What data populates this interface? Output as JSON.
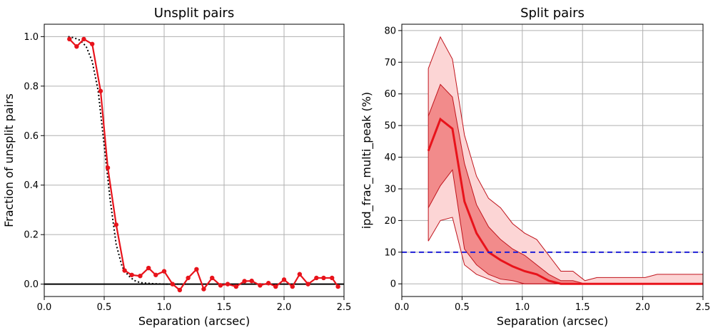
{
  "chart_data": [
    {
      "type": "line",
      "title": "Unsplit pairs",
      "xlabel": "Separation (arcsec)",
      "ylabel": "Fraction of unsplit pairs",
      "xlim": [
        0.0,
        2.5
      ],
      "ylim": [
        -0.05,
        1.05
      ],
      "x_ticks": [
        "0.0",
        "0.5",
        "1.0",
        "1.5",
        "2.0",
        "2.5"
      ],
      "y_ticks": [
        "0.0",
        "0.2",
        "0.4",
        "0.6",
        "0.8",
        "1.0"
      ],
      "grid": true,
      "colors": {
        "data": "#e8131b",
        "model": "#000000",
        "zero": "#000000",
        "grid": "#b0b0b0"
      },
      "series": [
        {
          "style": "solid-with-markers",
          "x": [
            0.21,
            0.27,
            0.33,
            0.4,
            0.47,
            0.53,
            0.6,
            0.67,
            0.73,
            0.8,
            0.87,
            0.93,
            1.0,
            1.07,
            1.13,
            1.2,
            1.27,
            1.33,
            1.4,
            1.47,
            1.53,
            1.6,
            1.67,
            1.73,
            1.8,
            1.87,
            1.93,
            2.0,
            2.07,
            2.13,
            2.2,
            2.27,
            2.33,
            2.4,
            2.45
          ],
          "y": [
            0.99,
            0.96,
            0.99,
            0.97,
            0.78,
            0.47,
            0.24,
            0.055,
            0.037,
            0.033,
            0.065,
            0.037,
            0.052,
            0.0,
            -0.024,
            0.025,
            0.06,
            -0.02,
            0.025,
            -0.005,
            0.0,
            -0.01,
            0.012,
            0.013,
            -0.005,
            0.004,
            -0.01,
            0.018,
            -0.01,
            0.04,
            0.0,
            0.025,
            0.025,
            0.025,
            -0.01
          ]
        },
        {
          "style": "dotted",
          "x": [
            0.2,
            0.25,
            0.3,
            0.35,
            0.4,
            0.45,
            0.5,
            0.55,
            0.6,
            0.65,
            0.7,
            0.75,
            0.8,
            0.9,
            1.0,
            1.1,
            1.2
          ],
          "y": [
            1.0,
            0.995,
            0.985,
            0.96,
            0.9,
            0.78,
            0.56,
            0.34,
            0.16,
            0.07,
            0.035,
            0.015,
            0.006,
            0.002,
            0.0,
            0.0,
            0.0
          ]
        },
        {
          "style": "solid-horizontal",
          "x": [
            0.0,
            2.5
          ],
          "y": [
            0.0,
            0.0
          ]
        }
      ]
    },
    {
      "type": "area",
      "title": "Split pairs",
      "xlabel": "Separation (arcsec)",
      "ylabel": "ipd_frac_multi_peak (%)",
      "xlim": [
        0.0,
        2.5
      ],
      "ylim": [
        -4,
        82
      ],
      "x_ticks": [
        "0.0",
        "0.5",
        "1.0",
        "1.5",
        "2.0",
        "2.5"
      ],
      "y_ticks": [
        "0",
        "10",
        "20",
        "30",
        "40",
        "50",
        "60",
        "70",
        "80"
      ],
      "grid": true,
      "colors": {
        "median": "#e8131b",
        "inner_band": "#f28b8b",
        "outer_band": "#fcd5d5",
        "band_edge": "#c0141c",
        "reference": "#1f1fd6",
        "grid": "#b0b0b0"
      },
      "x": [
        0.22,
        0.32,
        0.42,
        0.52,
        0.62,
        0.72,
        0.82,
        0.92,
        1.02,
        1.12,
        1.22,
        1.32,
        1.42,
        1.52,
        1.62,
        1.72,
        1.82,
        1.92,
        2.02,
        2.12,
        2.22,
        2.32,
        2.42,
        2.5
      ],
      "series": [
        {
          "name_hidden": true,
          "role": "p5",
          "values": [
            13.5,
            20,
            21,
            6,
            3,
            1.5,
            0,
            0,
            0,
            0,
            0,
            0,
            0,
            0,
            0,
            0,
            0,
            0,
            0,
            0,
            0,
            0,
            0,
            0
          ]
        },
        {
          "name_hidden": true,
          "role": "p25",
          "values": [
            24,
            31,
            36,
            11,
            6,
            3,
            1.5,
            1,
            0,
            0,
            0,
            0,
            0,
            0,
            0,
            0,
            0,
            0,
            0,
            0,
            0,
            0,
            0,
            0
          ]
        },
        {
          "name_hidden": true,
          "role": "median",
          "values": [
            42,
            52,
            49,
            26,
            16,
            10,
            7.5,
            5.5,
            4,
            3,
            1,
            0,
            0,
            0,
            0,
            0,
            0,
            0,
            0,
            0,
            0,
            0,
            0,
            0
          ]
        },
        {
          "name_hidden": true,
          "role": "p75",
          "values": [
            53,
            63,
            59,
            38,
            25,
            18,
            14,
            11,
            9,
            6,
            3,
            1,
            1,
            0,
            0,
            0,
            0,
            0,
            0,
            0,
            0,
            0,
            0,
            0
          ]
        },
        {
          "name_hidden": true,
          "role": "p95",
          "values": [
            68,
            78,
            71,
            47,
            34,
            27,
            24,
            19,
            16,
            14,
            9,
            4,
            4,
            1,
            2,
            2,
            2,
            2,
            2,
            3,
            3,
            3,
            3,
            3
          ]
        }
      ],
      "reference_line": {
        "y": 10,
        "style": "dashed"
      }
    }
  ]
}
